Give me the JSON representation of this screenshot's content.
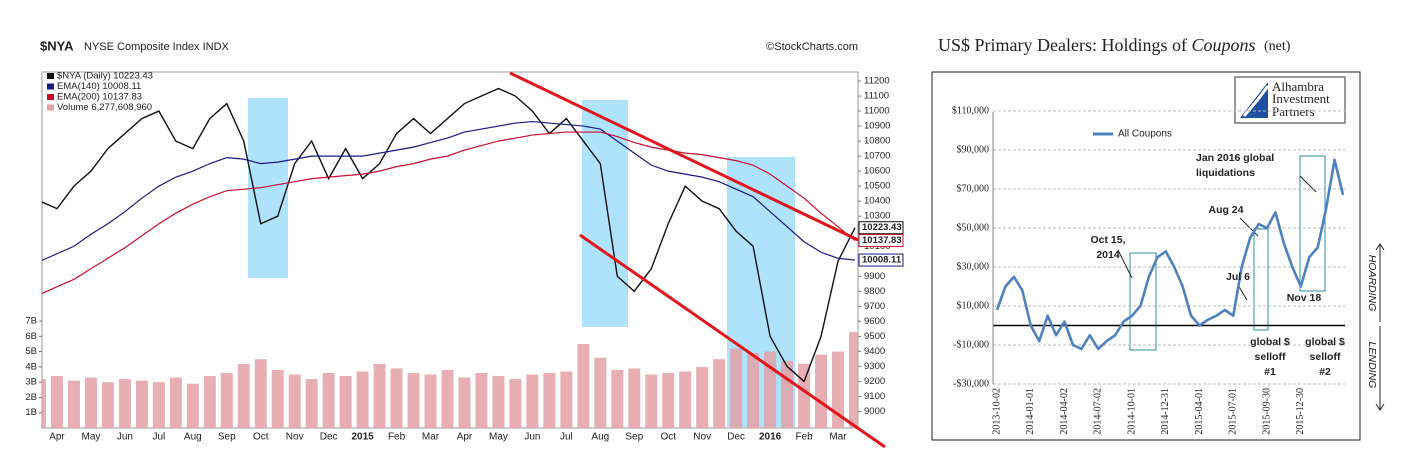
{
  "chart_data": [
    {
      "type": "line",
      "title": "$NYA",
      "subtitle": "NYSE Composite Index INDX",
      "source": "©StockCharts.com",
      "categories": [
        null,
        "Apr",
        null,
        "May",
        null,
        "Jun",
        null,
        "Jul",
        null,
        "Aug",
        null,
        "Sep",
        null,
        "Oct",
        null,
        "Nov",
        null,
        "Dec",
        null,
        "2015",
        null,
        "Feb",
        null,
        "Mar",
        null,
        "Apr",
        null,
        "May",
        null,
        "Jun",
        null,
        "Jul",
        null,
        "Aug",
        null,
        "Sep",
        null,
        "Oct",
        null,
        "Nov",
        null,
        "Dec",
        null,
        "2016",
        null,
        "Feb",
        null,
        "Mar",
        null
      ],
      "series": [
        {
          "name": "$NYA (Daily) 10223.43",
          "color": "#111111",
          "values": [
            10400,
            10350,
            10500,
            10600,
            10750,
            10850,
            10950,
            11000,
            10800,
            10750,
            10950,
            11050,
            10800,
            10250,
            10300,
            10650,
            10800,
            10550,
            10750,
            10550,
            10650,
            10850,
            10950,
            10850,
            10950,
            11050,
            11100,
            11150,
            11100,
            11000,
            10850,
            10950,
            10800,
            10650,
            9900,
            9800,
            9950,
            10250,
            10500,
            10400,
            10350,
            10200,
            10100,
            9500,
            9300,
            9200,
            9500,
            10000,
            10223.43
          ]
        },
        {
          "name": "EMA(140) 10008.11",
          "color": "#1a1a80",
          "values": [
            10000,
            10050,
            10100,
            10180,
            10250,
            10330,
            10420,
            10500,
            10560,
            10600,
            10650,
            10690,
            10680,
            10650,
            10660,
            10680,
            10700,
            10700,
            10700,
            10700,
            10720,
            10740,
            10760,
            10790,
            10820,
            10860,
            10880,
            10900,
            10920,
            10930,
            10920,
            10910,
            10900,
            10880,
            10800,
            10720,
            10640,
            10600,
            10580,
            10560,
            10530,
            10480,
            10430,
            10330,
            10230,
            10130,
            10060,
            10020,
            10008.11
          ]
        },
        {
          "name": "EMA(200) 10137.83",
          "color": "#c8102e",
          "values": [
            9780,
            9830,
            9880,
            9950,
            10020,
            10090,
            10170,
            10250,
            10320,
            10380,
            10430,
            10470,
            10480,
            10490,
            10510,
            10530,
            10550,
            10560,
            10570,
            10580,
            10600,
            10630,
            10650,
            10680,
            10700,
            10740,
            10770,
            10800,
            10820,
            10840,
            10850,
            10860,
            10860,
            10860,
            10830,
            10790,
            10760,
            10740,
            10720,
            10710,
            10690,
            10670,
            10640,
            10580,
            10500,
            10420,
            10320,
            10230,
            10137.83
          ]
        },
        {
          "name": "Volume 6,277,608,960",
          "color": "#e3a1a6",
          "axis": "y2",
          "values": [
            3.2,
            3.4,
            3.1,
            3.3,
            3.0,
            3.2,
            3.1,
            3.0,
            3.3,
            2.9,
            3.4,
            3.6,
            4.2,
            4.5,
            3.8,
            3.5,
            3.2,
            3.6,
            3.4,
            3.7,
            4.2,
            3.9,
            3.6,
            3.5,
            3.8,
            3.3,
            3.6,
            3.4,
            3.2,
            3.5,
            3.6,
            3.7,
            5.5,
            4.6,
            3.8,
            3.9,
            3.5,
            3.6,
            3.7,
            4.0,
            4.5,
            5.2,
            4.9,
            5.0,
            4.4,
            4.2,
            4.8,
            5.0,
            6.28
          ]
        }
      ],
      "ylim": [
        8890,
        11260
      ],
      "yticks": [
        9000,
        9100,
        9200,
        9300,
        9400,
        9500,
        9600,
        9700,
        9800,
        9900,
        10000,
        10100,
        10200,
        10300,
        10400,
        10500,
        10600,
        10700,
        10800,
        10900,
        11000,
        11100,
        11200
      ],
      "y2lim": [
        0,
        23.3
      ],
      "y2ticks": [
        {
          "value": 1,
          "label": "1B"
        },
        {
          "value": 2,
          "label": "2B"
        },
        {
          "value": 3,
          "label": "3B"
        },
        {
          "value": 4,
          "label": "4B"
        },
        {
          "value": 5,
          "label": "5B"
        },
        {
          "value": 6,
          "label": "6B"
        },
        {
          "value": 7,
          "label": "7B"
        }
      ],
      "grid": false
    },
    {
      "type": "line",
      "title": [
        "US$ Primary Dealers: Holdings of",
        "Coupons",
        "(net)"
      ],
      "categories": [
        "2013-10-02",
        null,
        null,
        null,
        "2014-01-01",
        null,
        null,
        null,
        "2014-04-02",
        null,
        null,
        null,
        "2014-07-02",
        null,
        null,
        null,
        "2014-10-01",
        null,
        null,
        null,
        "2014-12-31",
        null,
        null,
        null,
        "2015-04-01",
        null,
        null,
        null,
        "2015-07-01",
        null,
        null,
        null,
        "2015-09-30",
        null,
        null,
        null,
        "2015-12-30",
        null,
        null,
        null,
        null,
        null
      ],
      "series": [
        {
          "name": "All Coupons",
          "color": "#4f81bd",
          "values": [
            8000,
            20000,
            25000,
            18000,
            0,
            -8000,
            5000,
            -5000,
            2000,
            -10000,
            -12000,
            -5000,
            -12000,
            -8000,
            -5000,
            2000,
            5000,
            10000,
            25000,
            35000,
            38000,
            30000,
            20000,
            5000,
            0,
            3000,
            5000,
            8000,
            5000,
            30000,
            45000,
            52000,
            50000,
            58000,
            42000,
            30000,
            20000,
            35000,
            40000,
            60000,
            85000,
            67000
          ]
        }
      ],
      "ylim": [
        -30000,
        130000
      ],
      "yticks": [
        {
          "value": -30000,
          "label": "-$30,000"
        },
        {
          "value": -10000,
          "label": "-$10,000"
        },
        {
          "value": 10000,
          "label": "$10,000"
        },
        {
          "value": 30000,
          "label": "$30,000"
        },
        {
          "value": 50000,
          "label": "$50,000"
        },
        {
          "value": 70000,
          "label": "$70,000"
        },
        {
          "value": 90000,
          "label": "$90,000"
        },
        {
          "value": 110000,
          "label": "$110,000"
        }
      ],
      "grid": true,
      "annotations": [
        {
          "lines": [
            "Oct 15,",
            "2014"
          ]
        },
        {
          "lines": [
            "Jul 6"
          ]
        },
        {
          "lines": [
            "Aug 24"
          ]
        },
        {
          "lines": [
            "Jan 2016 global",
            "liquidations"
          ]
        },
        {
          "lines": [
            "Nov 18"
          ]
        },
        {
          "lines": [
            "global $",
            "selloff",
            "#1"
          ]
        },
        {
          "lines": [
            "global $",
            "selloff",
            "#2"
          ]
        },
        {
          "lines": [
            "HOARDING"
          ]
        },
        {
          "lines": [
            "LENDING"
          ]
        }
      ],
      "logo": [
        "Alhambra",
        "Investment",
        "Partners"
      ]
    }
  ]
}
